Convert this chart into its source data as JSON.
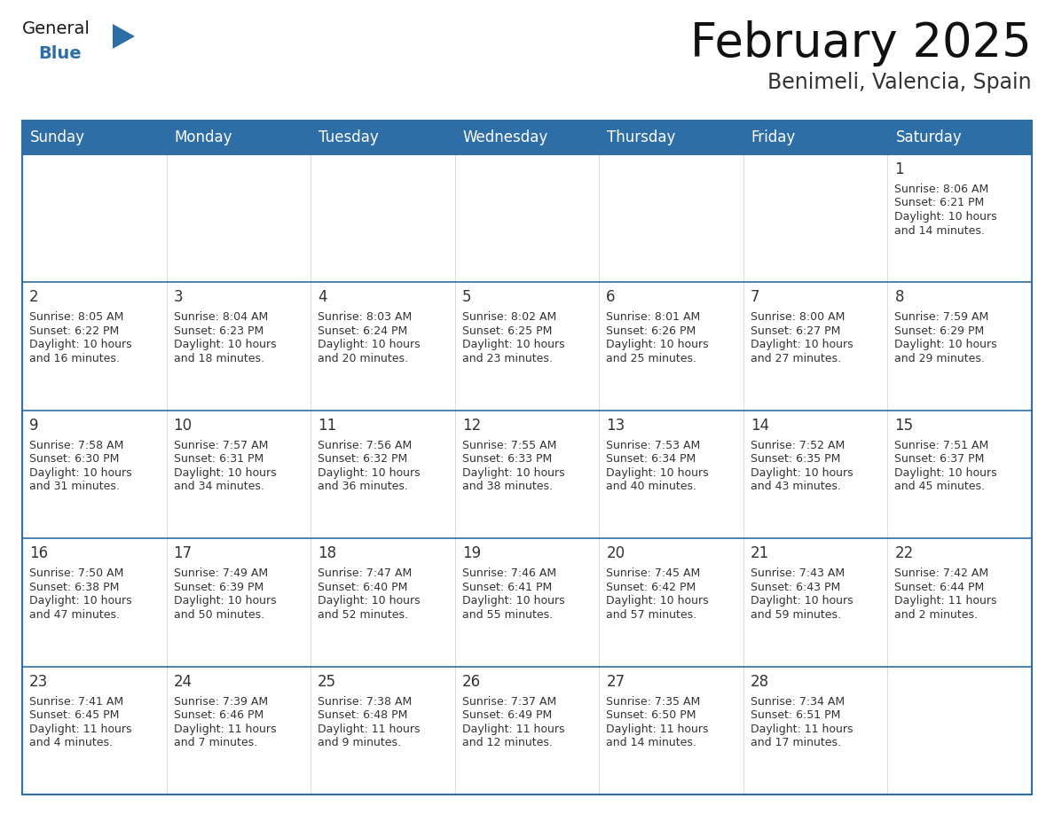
{
  "title": "February 2025",
  "subtitle": "Benimeli, Valencia, Spain",
  "header_bg": "#2E6EA6",
  "header_text_color": "#FFFFFF",
  "cell_bg": "#FFFFFF",
  "border_color": "#2E6EA6",
  "text_color": "#333333",
  "day_names": [
    "Sunday",
    "Monday",
    "Tuesday",
    "Wednesday",
    "Thursday",
    "Friday",
    "Saturday"
  ],
  "weeks": [
    [
      {
        "day": "",
        "info": ""
      },
      {
        "day": "",
        "info": ""
      },
      {
        "day": "",
        "info": ""
      },
      {
        "day": "",
        "info": ""
      },
      {
        "day": "",
        "info": ""
      },
      {
        "day": "",
        "info": ""
      },
      {
        "day": "1",
        "info": "Sunrise: 8:06 AM\nSunset: 6:21 PM\nDaylight: 10 hours\nand 14 minutes."
      }
    ],
    [
      {
        "day": "2",
        "info": "Sunrise: 8:05 AM\nSunset: 6:22 PM\nDaylight: 10 hours\nand 16 minutes."
      },
      {
        "day": "3",
        "info": "Sunrise: 8:04 AM\nSunset: 6:23 PM\nDaylight: 10 hours\nand 18 minutes."
      },
      {
        "day": "4",
        "info": "Sunrise: 8:03 AM\nSunset: 6:24 PM\nDaylight: 10 hours\nand 20 minutes."
      },
      {
        "day": "5",
        "info": "Sunrise: 8:02 AM\nSunset: 6:25 PM\nDaylight: 10 hours\nand 23 minutes."
      },
      {
        "day": "6",
        "info": "Sunrise: 8:01 AM\nSunset: 6:26 PM\nDaylight: 10 hours\nand 25 minutes."
      },
      {
        "day": "7",
        "info": "Sunrise: 8:00 AM\nSunset: 6:27 PM\nDaylight: 10 hours\nand 27 minutes."
      },
      {
        "day": "8",
        "info": "Sunrise: 7:59 AM\nSunset: 6:29 PM\nDaylight: 10 hours\nand 29 minutes."
      }
    ],
    [
      {
        "day": "9",
        "info": "Sunrise: 7:58 AM\nSunset: 6:30 PM\nDaylight: 10 hours\nand 31 minutes."
      },
      {
        "day": "10",
        "info": "Sunrise: 7:57 AM\nSunset: 6:31 PM\nDaylight: 10 hours\nand 34 minutes."
      },
      {
        "day": "11",
        "info": "Sunrise: 7:56 AM\nSunset: 6:32 PM\nDaylight: 10 hours\nand 36 minutes."
      },
      {
        "day": "12",
        "info": "Sunrise: 7:55 AM\nSunset: 6:33 PM\nDaylight: 10 hours\nand 38 minutes."
      },
      {
        "day": "13",
        "info": "Sunrise: 7:53 AM\nSunset: 6:34 PM\nDaylight: 10 hours\nand 40 minutes."
      },
      {
        "day": "14",
        "info": "Sunrise: 7:52 AM\nSunset: 6:35 PM\nDaylight: 10 hours\nand 43 minutes."
      },
      {
        "day": "15",
        "info": "Sunrise: 7:51 AM\nSunset: 6:37 PM\nDaylight: 10 hours\nand 45 minutes."
      }
    ],
    [
      {
        "day": "16",
        "info": "Sunrise: 7:50 AM\nSunset: 6:38 PM\nDaylight: 10 hours\nand 47 minutes."
      },
      {
        "day": "17",
        "info": "Sunrise: 7:49 AM\nSunset: 6:39 PM\nDaylight: 10 hours\nand 50 minutes."
      },
      {
        "day": "18",
        "info": "Sunrise: 7:47 AM\nSunset: 6:40 PM\nDaylight: 10 hours\nand 52 minutes."
      },
      {
        "day": "19",
        "info": "Sunrise: 7:46 AM\nSunset: 6:41 PM\nDaylight: 10 hours\nand 55 minutes."
      },
      {
        "day": "20",
        "info": "Sunrise: 7:45 AM\nSunset: 6:42 PM\nDaylight: 10 hours\nand 57 minutes."
      },
      {
        "day": "21",
        "info": "Sunrise: 7:43 AM\nSunset: 6:43 PM\nDaylight: 10 hours\nand 59 minutes."
      },
      {
        "day": "22",
        "info": "Sunrise: 7:42 AM\nSunset: 6:44 PM\nDaylight: 11 hours\nand 2 minutes."
      }
    ],
    [
      {
        "day": "23",
        "info": "Sunrise: 7:41 AM\nSunset: 6:45 PM\nDaylight: 11 hours\nand 4 minutes."
      },
      {
        "day": "24",
        "info": "Sunrise: 7:39 AM\nSunset: 6:46 PM\nDaylight: 11 hours\nand 7 minutes."
      },
      {
        "day": "25",
        "info": "Sunrise: 7:38 AM\nSunset: 6:48 PM\nDaylight: 11 hours\nand 9 minutes."
      },
      {
        "day": "26",
        "info": "Sunrise: 7:37 AM\nSunset: 6:49 PM\nDaylight: 11 hours\nand 12 minutes."
      },
      {
        "day": "27",
        "info": "Sunrise: 7:35 AM\nSunset: 6:50 PM\nDaylight: 11 hours\nand 14 minutes."
      },
      {
        "day": "28",
        "info": "Sunrise: 7:34 AM\nSunset: 6:51 PM\nDaylight: 11 hours\nand 17 minutes."
      },
      {
        "day": "",
        "info": ""
      }
    ]
  ],
  "logo_color_general": "#1a1a1a",
  "logo_color_blue": "#2E6EA6",
  "logo_triangle_color": "#2E6EA6",
  "title_fontsize": 38,
  "subtitle_fontsize": 17,
  "header_fontsize": 12,
  "day_num_fontsize": 12,
  "info_fontsize": 9
}
